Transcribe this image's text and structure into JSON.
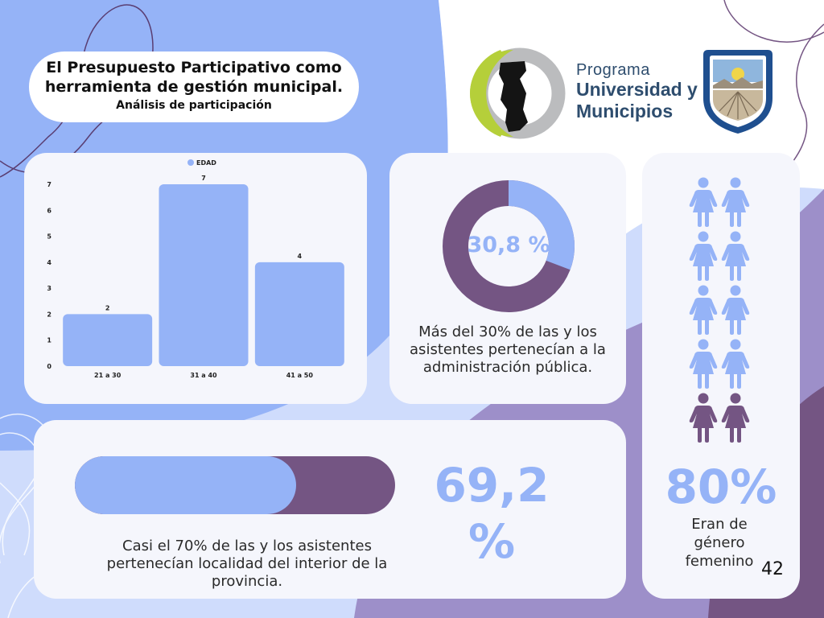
{
  "header": {
    "title_line1": "El Presupuesto Participativo como",
    "title_line2": "herramienta de gestión municipal.",
    "subtitle": "Análisis de participación"
  },
  "logo": {
    "line1": "Programa",
    "line2": "Universidad y",
    "line3": "Municipios"
  },
  "chart_data": {
    "type": "bar",
    "categories": [
      "21 a 30",
      "31 a 40",
      "41 a 50"
    ],
    "series": [
      {
        "name": "EDAD",
        "values": [
          2,
          7,
          4
        ]
      }
    ],
    "y_ticks": [
      "0",
      "1",
      "2",
      "3",
      "4",
      "5",
      "6",
      "7"
    ],
    "ylim": [
      0,
      7
    ],
    "legend": "top-center",
    "data_labels": true,
    "grid": false,
    "color": "#95b3f7"
  },
  "donut": {
    "value_label": "30,8 %",
    "fraction": 0.308,
    "caption": "Más del 30% de las y los asistentes pertenecían a la administración pública."
  },
  "progress": {
    "value_label": "69,2 %",
    "fraction": 0.692,
    "caption": "Casi el 70% de las y los asistentes pertenecían localidad del interior de la provincia."
  },
  "gender": {
    "value_label": "80%",
    "caption_line1": "Eran de",
    "caption_line2": "género",
    "caption_line3": "femenino",
    "total_icons": 10,
    "highlighted_icons": 8
  },
  "page_number": "42",
  "colors": {
    "light_blue": "#95b3f7",
    "purple": "#745583",
    "lavender": "#9d8fc9",
    "pale_blue": "#cfdcfc"
  }
}
